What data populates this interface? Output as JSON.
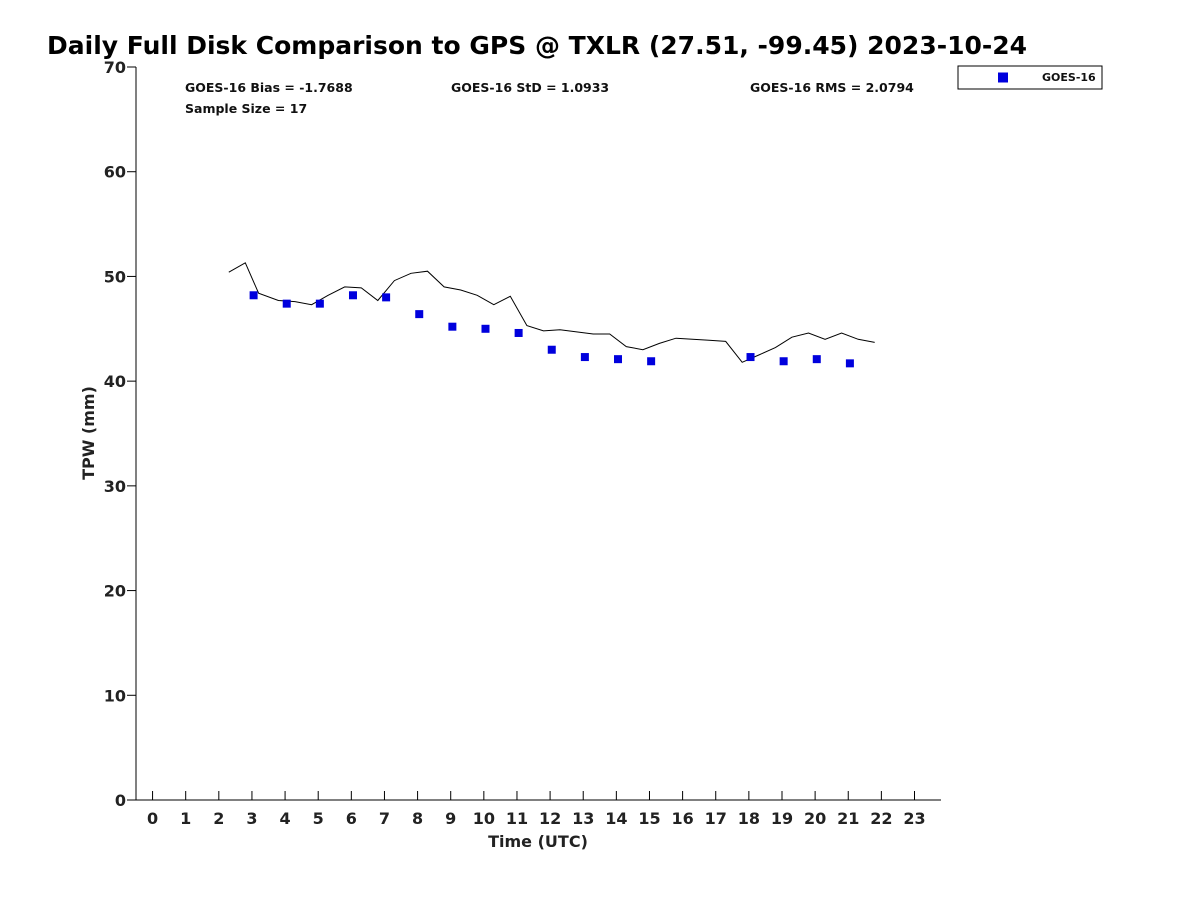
{
  "chart_data": {
    "type": "scatter",
    "title": "Daily Full Disk Comparison to GPS @ TXLR (27.51, -99.45) 2023-10-24",
    "xlabel": "Time (UTC)",
    "ylabel": "TPW (mm)",
    "xlim": [
      -0.5,
      23.8
    ],
    "ylim": [
      0,
      70
    ],
    "xticks": [
      0,
      1,
      2,
      3,
      4,
      5,
      6,
      7,
      8,
      9,
      10,
      11,
      12,
      13,
      14,
      15,
      16,
      17,
      18,
      19,
      20,
      21,
      22,
      23
    ],
    "yticks": [
      0,
      10,
      20,
      30,
      40,
      50,
      60,
      70
    ],
    "grid": false,
    "legend_position": "top-right (outside plot)",
    "stats": [
      "GOES-16 Bias = -1.7688",
      "GOES-16 StD = 1.0933",
      "GOES-16 RMS = 2.0794",
      "Sample Size = 17"
    ],
    "series": [
      {
        "name": "GOES-16",
        "kind": "scatter",
        "marker": "square",
        "color": "#0000dd",
        "x": [
          3.05,
          4.05,
          5.05,
          6.05,
          7.05,
          8.05,
          9.05,
          10.05,
          11.05,
          12.05,
          13.05,
          14.05,
          15.05,
          18.05,
          19.05,
          20.05,
          21.05
        ],
        "y": [
          48.2,
          47.4,
          47.4,
          48.2,
          48.0,
          46.4,
          45.2,
          45.0,
          44.6,
          43.0,
          42.3,
          42.1,
          41.9,
          42.3,
          41.9,
          42.1,
          41.7
        ]
      },
      {
        "kind": "line",
        "color": "#000000",
        "x": [
          2.3,
          2.8,
          3.2,
          3.8,
          4.3,
          4.8,
          5.3,
          5.8,
          6.3,
          6.8,
          7.3,
          7.8,
          8.3,
          8.8,
          9.3,
          9.8,
          10.3,
          10.8,
          11.3,
          11.8,
          12.3,
          12.8,
          13.3,
          13.8,
          14.3,
          14.8,
          15.3,
          15.8,
          16.3,
          16.8,
          17.3,
          17.8,
          18.3,
          18.8,
          19.3,
          19.8,
          20.3,
          20.8,
          21.3,
          21.8
        ],
        "y": [
          50.4,
          51.3,
          48.4,
          47.7,
          47.6,
          47.3,
          48.2,
          49.0,
          48.9,
          47.7,
          49.6,
          50.3,
          50.5,
          49.0,
          48.7,
          48.2,
          47.3,
          48.1,
          45.3,
          44.8,
          44.9,
          44.7,
          44.5,
          44.5,
          43.3,
          43.0,
          43.6,
          44.1,
          44.0,
          43.9,
          43.8,
          41.8,
          42.5,
          43.2,
          44.2,
          44.6,
          44.0,
          44.6,
          44.0,
          43.7
        ]
      }
    ]
  }
}
